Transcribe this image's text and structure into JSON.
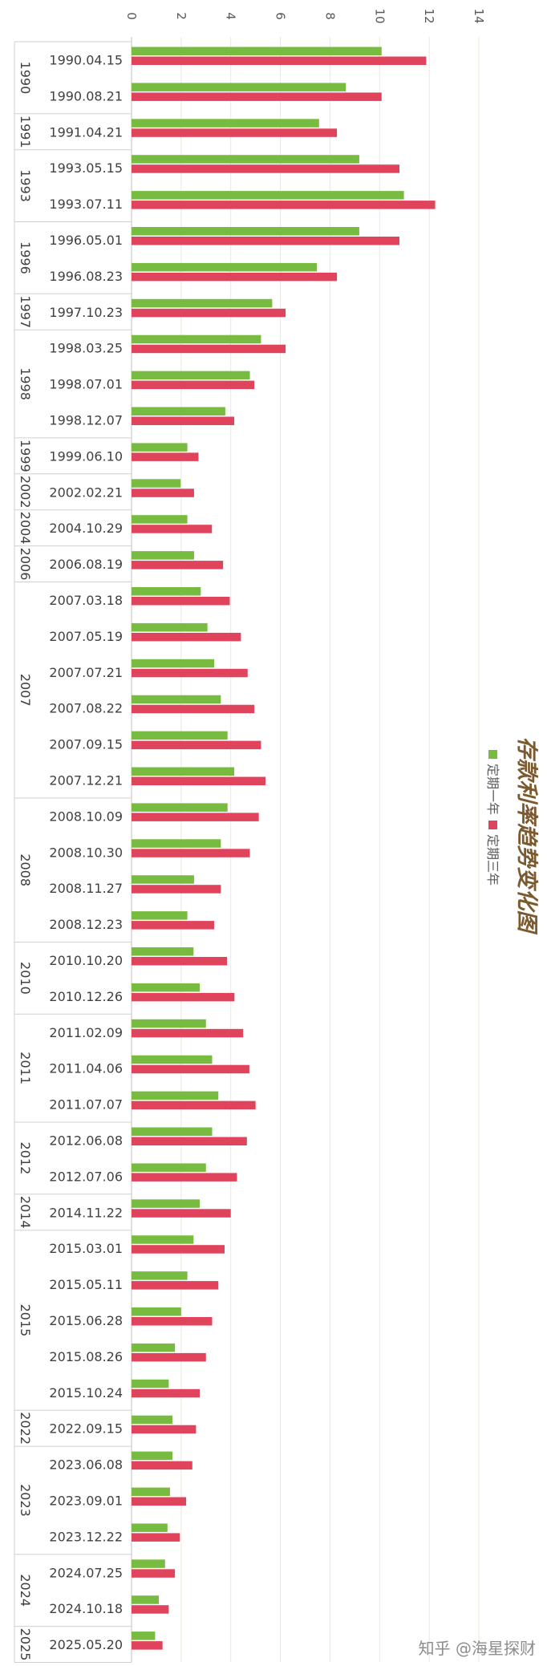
{
  "chart_data": {
    "type": "bar",
    "orientation": "horizontal",
    "title": "存款利率趋势变化图",
    "xlim": [
      0,
      14
    ],
    "xticks": [
      0,
      2,
      4,
      6,
      8,
      10,
      12,
      14
    ],
    "grid": true,
    "legend_position": "right",
    "categories": [
      "1990.04.15",
      "1990.08.21",
      "1991.04.21",
      "1993.05.15",
      "1993.07.11",
      "1996.05.01",
      "1996.08.23",
      "1997.10.23",
      "1998.03.25",
      "1998.07.01",
      "1998.12.07",
      "1999.06.10",
      "2002.02.21",
      "2004.10.29",
      "2006.08.19",
      "2007.03.18",
      "2007.05.19",
      "2007.07.21",
      "2007.08.22",
      "2007.09.15",
      "2007.12.21",
      "2008.10.09",
      "2008.10.30",
      "2008.11.27",
      "2008.12.23",
      "2010.10.20",
      "2010.12.26",
      "2011.02.09",
      "2011.04.06",
      "2011.07.07",
      "2012.06.08",
      "2012.07.06",
      "2014.11.22",
      "2015.03.01",
      "2015.05.11",
      "2015.06.28",
      "2015.08.26",
      "2015.10.24",
      "2022.09.15",
      "2023.06.08",
      "2023.09.01",
      "2023.12.22",
      "2024.07.25",
      "2024.10.18",
      "2025.05.20"
    ],
    "year_groups": [
      {
        "year": "1990",
        "count": 2
      },
      {
        "year": "1991",
        "count": 1
      },
      {
        "year": "1993",
        "count": 2
      },
      {
        "year": "1996",
        "count": 2
      },
      {
        "year": "1997",
        "count": 1
      },
      {
        "year": "1998",
        "count": 3
      },
      {
        "year": "1999",
        "count": 1
      },
      {
        "year": "2002",
        "count": 1
      },
      {
        "year": "2004",
        "count": 1
      },
      {
        "year": "2006",
        "count": 1
      },
      {
        "year": "2007",
        "count": 6
      },
      {
        "year": "2008",
        "count": 4
      },
      {
        "year": "2010",
        "count": 2
      },
      {
        "year": "2011",
        "count": 3
      },
      {
        "year": "2012",
        "count": 2
      },
      {
        "year": "2014",
        "count": 1
      },
      {
        "year": "2015",
        "count": 5
      },
      {
        "year": "2022",
        "count": 1
      },
      {
        "year": "2023",
        "count": 3
      },
      {
        "year": "2024",
        "count": 2
      },
      {
        "year": "2025",
        "count": 1
      }
    ],
    "series": [
      {
        "name": "定期一年",
        "color": "#77bb41",
        "values": [
          10.08,
          8.64,
          7.56,
          9.18,
          10.98,
          9.18,
          7.47,
          5.67,
          5.22,
          4.77,
          3.78,
          2.25,
          1.98,
          2.25,
          2.52,
          2.79,
          3.06,
          3.33,
          3.6,
          3.87,
          4.14,
          3.87,
          3.6,
          2.52,
          2.25,
          2.5,
          2.75,
          3.0,
          3.25,
          3.5,
          3.25,
          3.0,
          2.75,
          2.5,
          2.25,
          2.0,
          1.75,
          1.5,
          1.65,
          1.65,
          1.55,
          1.45,
          1.35,
          1.1,
          0.95
        ]
      },
      {
        "name": "定期三年",
        "color": "#e0445c",
        "values": [
          11.88,
          10.08,
          8.28,
          10.8,
          12.24,
          10.8,
          8.28,
          6.21,
          6.21,
          4.95,
          4.14,
          2.7,
          2.52,
          3.24,
          3.69,
          3.96,
          4.41,
          4.68,
          4.95,
          5.22,
          5.4,
          5.13,
          4.77,
          3.6,
          3.33,
          3.85,
          4.15,
          4.5,
          4.75,
          5.0,
          4.65,
          4.25,
          4.0,
          3.75,
          3.5,
          3.25,
          3.0,
          2.75,
          2.6,
          2.45,
          2.2,
          1.95,
          1.75,
          1.5,
          1.25
        ]
      }
    ]
  },
  "watermark": "知乎 @海星探财"
}
